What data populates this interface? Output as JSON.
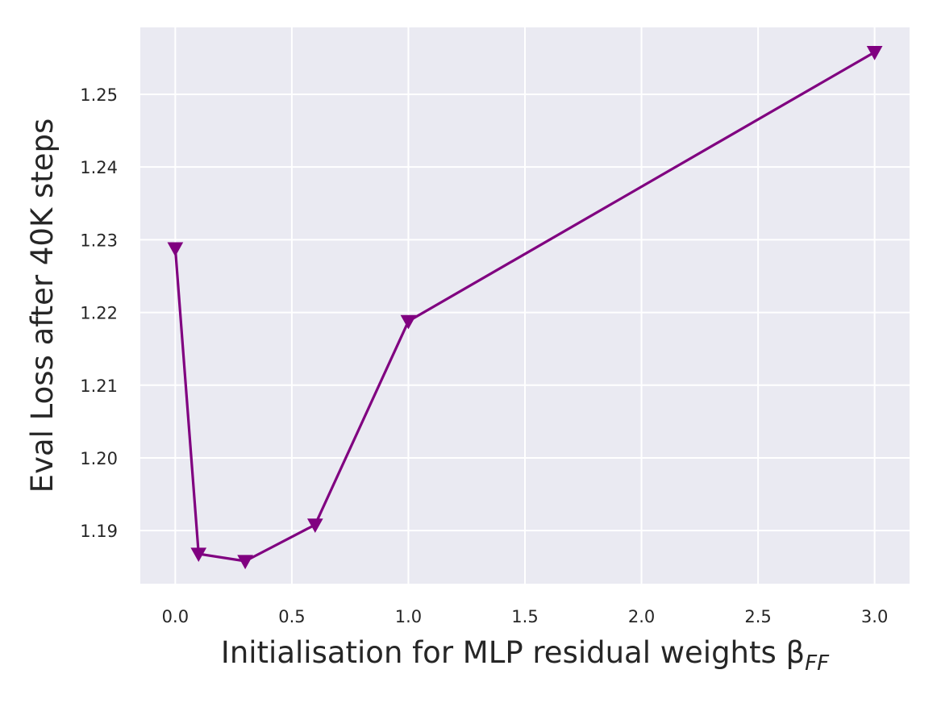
{
  "chart_data": {
    "type": "line",
    "title": "",
    "xlabel": "Initialisation for MLP residual weights β",
    "xlabel_subscript": "FF",
    "ylabel": "Eval Loss after 40K steps",
    "x": [
      0.0,
      0.1,
      0.3,
      0.6,
      1.0,
      3.0
    ],
    "series": [
      {
        "values": [
          1.2288,
          1.1868,
          1.1858,
          1.1908,
          1.2188,
          1.2558
        ],
        "color": "#800080",
        "marker": "triangle-down"
      }
    ],
    "xlim": [
      -0.15,
      3.15
    ],
    "ylim": [
      1.1827,
      1.2592
    ],
    "xticks": [
      0.0,
      0.5,
      1.0,
      1.5,
      2.0,
      2.5,
      3.0
    ],
    "xtick_labels": [
      "0.0",
      "0.5",
      "1.0",
      "1.5",
      "2.0",
      "2.5",
      "3.0"
    ],
    "yticks": [
      1.19,
      1.2,
      1.21,
      1.22,
      1.23,
      1.24,
      1.25
    ],
    "ytick_labels": [
      "1.19",
      "1.20",
      "1.21",
      "1.22",
      "1.23",
      "1.24",
      "1.25"
    ],
    "grid": true,
    "background": "#eaeaf2",
    "grid_color": "#ffffff"
  }
}
